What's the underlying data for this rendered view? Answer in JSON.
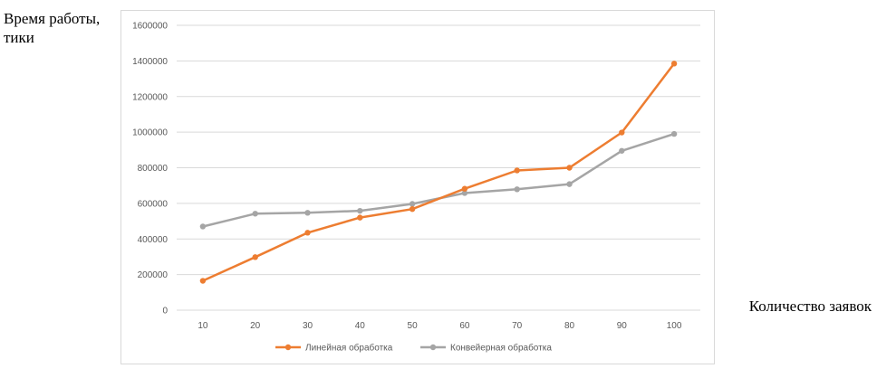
{
  "chart_data": {
    "type": "line",
    "ylabel": "Время работы, тики",
    "xlabel": "Количество заявок",
    "categories": [
      "10",
      "20",
      "30",
      "40",
      "50",
      "60",
      "70",
      "80",
      "90",
      "100"
    ],
    "ylim": [
      0,
      1600000
    ],
    "yticks": [
      0,
      200000,
      400000,
      600000,
      800000,
      1000000,
      1200000,
      1400000,
      1600000
    ],
    "ytick_labels": [
      "0",
      "200000",
      "400000",
      "600000",
      "800000",
      "1000000",
      "1200000",
      "1400000",
      "1600000"
    ],
    "grid": true,
    "legend_position": "bottom",
    "series": [
      {
        "name": "Линейная обработка",
        "color": "#ed7d31",
        "values": [
          165000,
          298000,
          435000,
          520000,
          568000,
          682000,
          785000,
          800000,
          998000,
          1385000
        ]
      },
      {
        "name": "Конвейерная обработка",
        "color": "#a5a5a5",
        "values": [
          470000,
          542000,
          547000,
          558000,
          597000,
          658000,
          679000,
          708000,
          895000,
          990000
        ]
      }
    ]
  }
}
